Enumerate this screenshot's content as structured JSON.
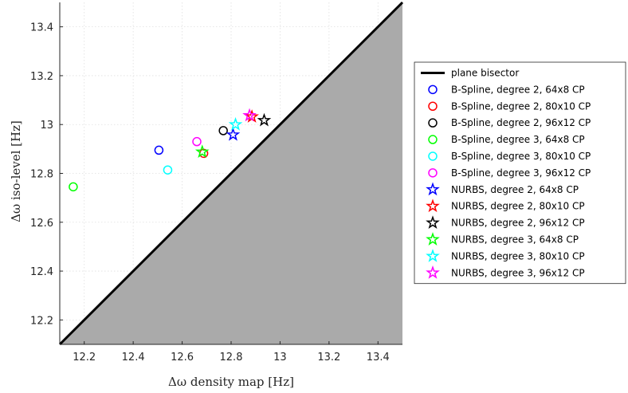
{
  "chart_data": {
    "type": "scatter",
    "xlabel": "Δω density map [Hz]",
    "ylabel": "Δω iso-level [Hz]",
    "xlim": [
      12.1,
      13.5
    ],
    "ylim": [
      12.1,
      13.5
    ],
    "x_ticks": [
      "12.2",
      "12.4",
      "12.6",
      "12.8",
      "13",
      "13.2",
      "13.4"
    ],
    "y_ticks": [
      "12.2",
      "12.4",
      "12.6",
      "12.8",
      "13",
      "13.2",
      "13.4"
    ],
    "grid": true,
    "legend_position": "right",
    "shaded_region": "below bisector (gray)",
    "reference_line": {
      "name": "plane bisector",
      "x": [
        12.1,
        13.5
      ],
      "y": [
        12.1,
        13.5
      ],
      "color": "#000000"
    },
    "series": [
      {
        "name": "B-Spline, degree 2, 64x8 CP",
        "marker": "circle",
        "color": "#0000ff",
        "x": 12.505,
        "y": 12.895
      },
      {
        "name": "B-Spline, degree 2, 80x10 CP",
        "marker": "circle",
        "color": "#ff0000",
        "x": 12.688,
        "y": 12.882
      },
      {
        "name": "B-Spline, degree 2, 96x12 CP",
        "marker": "circle",
        "color": "#000000",
        "x": 12.768,
        "y": 12.975
      },
      {
        "name": "B-Spline, degree 3, 64x8 CP",
        "marker": "circle",
        "color": "#00ff00",
        "x": 12.155,
        "y": 12.745
      },
      {
        "name": "B-Spline, degree 3, 80x10 CP",
        "marker": "circle",
        "color": "#00ffff",
        "x": 12.541,
        "y": 12.814
      },
      {
        "name": "B-Spline, degree 3, 96x12 CP",
        "marker": "circle",
        "color": "#ff00ff",
        "x": 12.66,
        "y": 12.93
      },
      {
        "name": "NURBS, degree 2, 64x8 CP",
        "marker": "star",
        "color": "#0000ff",
        "x": 12.808,
        "y": 12.958
      },
      {
        "name": "NURBS, degree 2, 80x10 CP",
        "marker": "star",
        "color": "#ff0000",
        "x": 12.885,
        "y": 13.032
      },
      {
        "name": "NURBS, degree 2, 96x12 CP",
        "marker": "star",
        "color": "#000000",
        "x": 12.935,
        "y": 13.017
      },
      {
        "name": "NURBS, degree 3, 64x8 CP",
        "marker": "star",
        "color": "#00ff00",
        "x": 12.682,
        "y": 12.888
      },
      {
        "name": "NURBS, degree 3, 80x10 CP",
        "marker": "star",
        "color": "#00ffff",
        "x": 12.818,
        "y": 13.0
      },
      {
        "name": "NURBS, degree 3, 96x12 CP",
        "marker": "star",
        "color": "#ff00ff",
        "x": 12.875,
        "y": 13.037
      }
    ]
  }
}
